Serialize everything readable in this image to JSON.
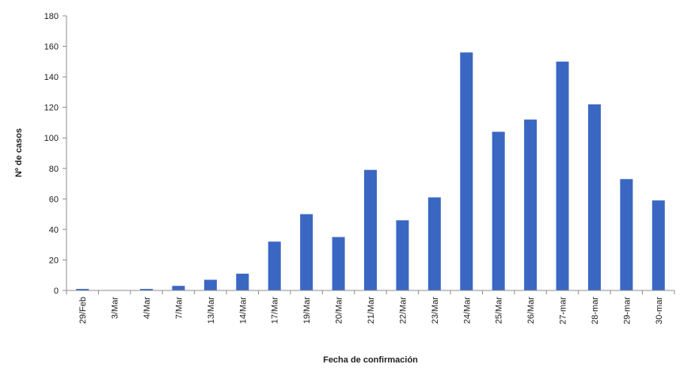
{
  "chart_data": {
    "type": "bar",
    "title": "",
    "xlabel": "Fecha de confirmación",
    "ylabel": "Nº de casos",
    "ylim": [
      0,
      180
    ],
    "yticks": [
      0,
      20,
      40,
      60,
      80,
      100,
      120,
      140,
      160,
      180
    ],
    "grid": false,
    "legend": "none",
    "bar_color": "#3a67c2",
    "categories": [
      "29/Feb",
      "3/Mar",
      "4/Mar",
      "7/Mar",
      "13/Mar",
      "14/Mar",
      "17/Mar",
      "19/Mar",
      "20/Mar",
      "21/Mar",
      "22/Mar",
      "23/Mar",
      "24/Mar",
      "25/Mar",
      "26/Mar",
      "27-mar",
      "28-mar",
      "29-mar",
      "30-mar"
    ],
    "values": [
      1,
      0,
      1,
      3,
      7,
      11,
      32,
      50,
      35,
      79,
      46,
      61,
      156,
      104,
      112,
      150,
      122,
      73,
      59
    ]
  }
}
